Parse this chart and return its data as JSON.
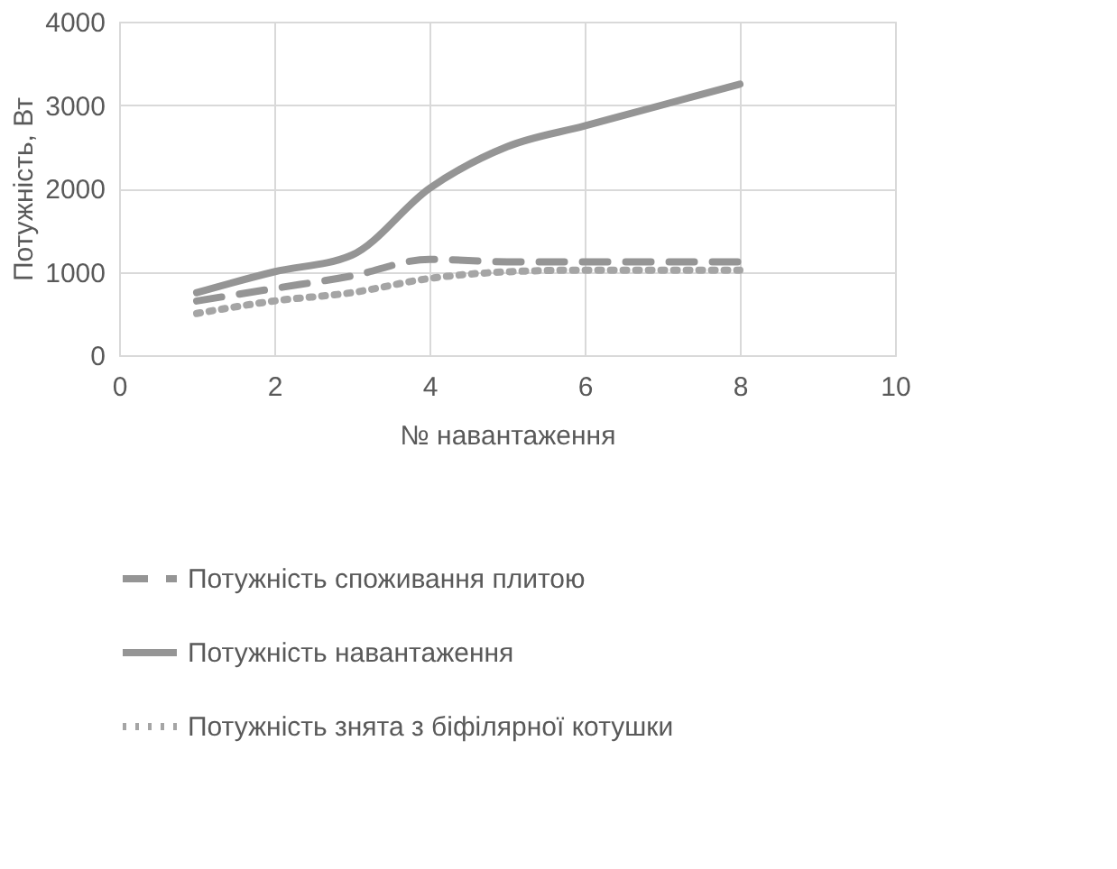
{
  "chart_data": {
    "type": "line",
    "xlabel": "№ навантаження",
    "ylabel": "Потужність, Вт",
    "x": [
      1,
      2,
      3,
      4,
      5,
      6,
      7,
      8
    ],
    "series": [
      {
        "name": "Потужність споживання плитою",
        "color": "#959595",
        "line_style": "dashed",
        "values": [
          650,
          800,
          950,
          1150,
          1120,
          1120,
          1120,
          1120
        ]
      },
      {
        "name": "Потужність навантаження",
        "color": "#959595",
        "line_style": "solid",
        "values": [
          750,
          1000,
          1200,
          2000,
          2500,
          2750,
          3000,
          3250
        ]
      },
      {
        "name": "Потужність знята з біфілярної котушки",
        "color": "#a5a5a5",
        "line_style": "dotted",
        "values": [
          500,
          650,
          750,
          920,
          1000,
          1020,
          1020,
          1020
        ]
      }
    ],
    "xlim": [
      0,
      10
    ],
    "xticks": [
      0,
      2,
      4,
      6,
      8,
      10
    ],
    "ylim": [
      0,
      4000
    ],
    "yticks": [
      0,
      1000,
      2000,
      3000,
      4000
    ],
    "grid": true,
    "legend": "bottom",
    "marker": "none"
  }
}
